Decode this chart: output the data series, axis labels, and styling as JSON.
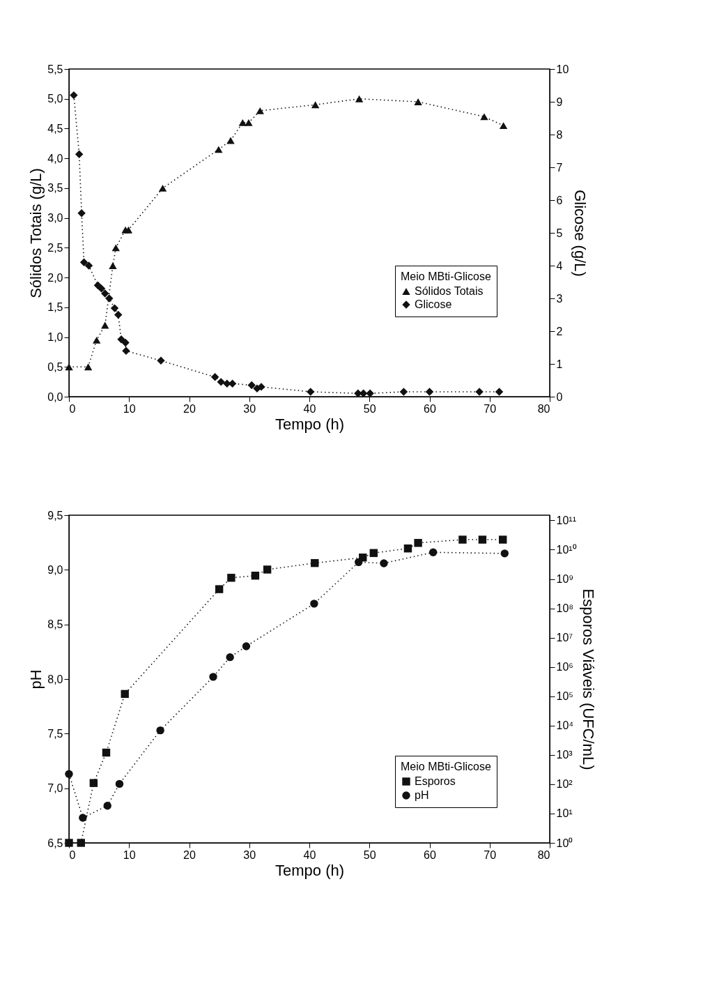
{
  "chart_data": [
    {
      "type": "line",
      "xlabel": "Tempo (h)",
      "ylabel": "Sólidos Totais (g/L)",
      "y2label": "Glicose (g/L)",
      "legend_title": "Meio MBti-Glicose",
      "legend": "right",
      "grid": false,
      "line_style": "dotted",
      "xlim": [
        0,
        80
      ],
      "xticks": [
        0,
        10,
        20,
        30,
        40,
        50,
        60,
        70,
        80
      ],
      "ylim": [
        0,
        5.5
      ],
      "yticks": [
        {
          "value": 0,
          "label": "0,0"
        },
        {
          "value": 0.5,
          "label": "0,5"
        },
        {
          "value": 1,
          "label": "1,0"
        },
        {
          "value": 1.5,
          "label": "1,5"
        },
        {
          "value": 2,
          "label": "2,0"
        },
        {
          "value": 2.5,
          "label": "2,5"
        },
        {
          "value": 3,
          "label": "3,0"
        },
        {
          "value": 3.5,
          "label": "3,5"
        },
        {
          "value": 4,
          "label": "4,0"
        },
        {
          "value": 4.5,
          "label": "4,5"
        },
        {
          "value": 5,
          "label": "5,0"
        },
        {
          "value": 5.5,
          "label": "5,5"
        }
      ],
      "y2lim": [
        0,
        10
      ],
      "y2ticks": [
        0,
        1,
        2,
        3,
        4,
        5,
        6,
        7,
        8,
        9,
        10
      ],
      "series": [
        {
          "name": "Sólidos Totais",
          "color": "#111111",
          "marker": "triangle",
          "axis": "y",
          "x": [
            0,
            3.2,
            4.6,
            6.0,
            7.3,
            7.8,
            9.4,
            9.9,
            15.6,
            24.9,
            26.9,
            28.9,
            29.9,
            31.8,
            41.0,
            48.3,
            58.1,
            69.1,
            72.3
          ],
          "values": [
            0.5,
            0.5,
            0.95,
            1.2,
            2.2,
            2.5,
            2.8,
            2.8,
            3.5,
            4.15,
            4.3,
            4.6,
            4.6,
            4.8,
            4.9,
            5.0,
            4.95,
            4.7,
            4.55
          ]
        },
        {
          "name": "Glicose",
          "color": "#111111",
          "marker": "diamond",
          "axis": "y2",
          "x": [
            0.8,
            1.7,
            2.1,
            2.5,
            3.3,
            4.8,
            5.4,
            6.0,
            6.7,
            7.6,
            8.2,
            8.7,
            9.4,
            9.5,
            15.3,
            24.3,
            25.3,
            26.3,
            27.2,
            30.4,
            31.3,
            32.0,
            40.2,
            48.1,
            49.0,
            50.1,
            55.7,
            60.0,
            68.3,
            71.6
          ],
          "values": [
            9.2,
            7.4,
            5.6,
            4.1,
            4.0,
            3.4,
            3.3,
            3.15,
            3.0,
            2.7,
            2.5,
            1.75,
            1.65,
            1.4,
            1.1,
            0.6,
            0.45,
            0.4,
            0.4,
            0.35,
            0.25,
            0.3,
            0.15,
            0.1,
            0.1,
            0.1,
            0.15,
            0.15,
            0.15,
            0.15
          ]
        }
      ]
    },
    {
      "type": "line",
      "xlabel": "Tempo (h)",
      "ylabel": "pH",
      "y2label": "Esporos Viáveis (UFC/mL)",
      "legend_title": "Meio MBti-Glicose",
      "legend": "bottom right",
      "grid": false,
      "line_style": "dotted",
      "log": "y2",
      "xlim": [
        0,
        80
      ],
      "xticks": [
        0,
        10,
        20,
        30,
        40,
        50,
        60,
        70,
        80
      ],
      "ylim": [
        6.5,
        9.5
      ],
      "yticks": [
        {
          "value": 6.5,
          "label": "6,5"
        },
        {
          "value": 7,
          "label": "7,0"
        },
        {
          "value": 7.5,
          "label": "7,5"
        },
        {
          "value": 8,
          "label": "8,0"
        },
        {
          "value": 8.5,
          "label": "8,5"
        },
        {
          "value": 9,
          "label": "9,0"
        },
        {
          "value": 9.5,
          "label": "9,5"
        }
      ],
      "y2lim": [
        1,
        150000000000
      ],
      "y2ticks": [
        {
          "value": 1,
          "label": "10⁰"
        },
        {
          "value": 10,
          "label": "10¹"
        },
        {
          "value": 100,
          "label": "10²"
        },
        {
          "value": 1000,
          "label": "10³"
        },
        {
          "value": 10000,
          "label": "10⁴"
        },
        {
          "value": 100000,
          "label": "10⁵"
        },
        {
          "value": 1000000,
          "label": "10⁶"
        },
        {
          "value": 10000000,
          "label": "10⁷"
        },
        {
          "value": 100000000,
          "label": "10⁸"
        },
        {
          "value": 1000000000,
          "label": "10⁹"
        },
        {
          "value": 10000000000,
          "label": "10¹⁰"
        },
        {
          "value": 100000000000,
          "label": "10¹¹"
        }
      ],
      "series": [
        {
          "name": "Esporos",
          "color": "#111111",
          "marker": "square",
          "axis": "y2",
          "x": [
            0,
            2.0,
            4.1,
            6.2,
            9.3,
            25.0,
            27.0,
            31.0,
            33.0,
            40.9,
            48.9,
            50.7,
            56.4,
            58.1,
            65.5,
            68.8,
            72.2
          ],
          "values": [
            1,
            1,
            110,
            1200,
            120000,
            450000000,
            1100000000,
            1300000000,
            2100000000,
            3500000000,
            5400000000,
            7700000000,
            11000000000,
            17000000000,
            22000000000,
            22000000000,
            22000000000
          ]
        },
        {
          "name": "pH",
          "color": "#111111",
          "marker": "circle",
          "axis": "y",
          "x": [
            0,
            2.3,
            6.4,
            8.4,
            15.2,
            24.0,
            26.8,
            29.5,
            40.8,
            48.2,
            52.4,
            60.6,
            72.5
          ],
          "values": [
            7.13,
            6.73,
            6.84,
            7.04,
            7.53,
            8.02,
            8.2,
            8.3,
            8.69,
            9.07,
            9.06,
            9.16,
            9.15
          ]
        }
      ]
    }
  ]
}
